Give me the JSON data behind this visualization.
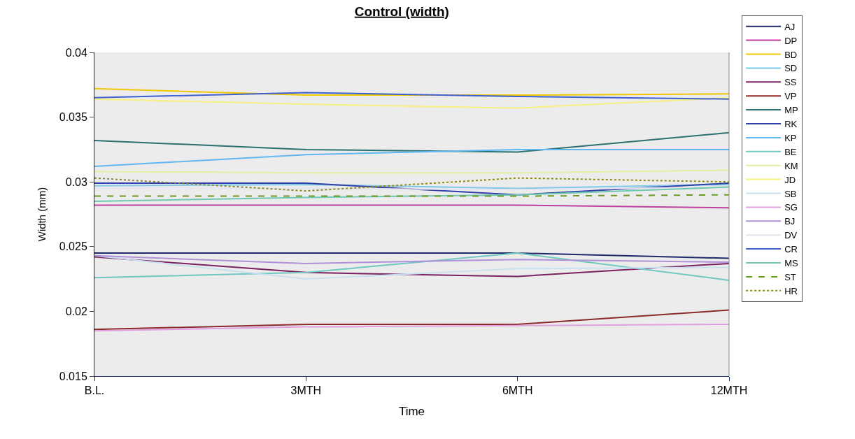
{
  "chart_data": {
    "type": "line",
    "title": "Control (width)",
    "xlabel": "Time",
    "ylabel": "Width (mm)",
    "categories": [
      "B.L.",
      "3MTH",
      "6MTH",
      "12MTH"
    ],
    "ylim": [
      0.015,
      0.04
    ],
    "yticks": [
      0.015,
      0.02,
      0.025,
      0.03,
      0.035,
      0.04
    ],
    "grid": false,
    "legend": "right",
    "marker": "none",
    "line_style": "solid",
    "series": [
      {
        "name": "AJ",
        "color": "#1f2a6b",
        "values": [
          0.0245,
          0.0245,
          0.0245,
          0.0241
        ]
      },
      {
        "name": "DP",
        "color": "#c040a0",
        "values": [
          0.0282,
          0.0282,
          0.0282,
          0.028
        ]
      },
      {
        "name": "BD",
        "color": "#f0c800",
        "values": [
          0.0372,
          0.0367,
          0.0367,
          0.0368
        ]
      },
      {
        "name": "SD",
        "color": "#80c8e8",
        "values": [
          0.0297,
          0.0298,
          0.0295,
          0.0298
        ]
      },
      {
        "name": "SS",
        "color": "#7a2060",
        "values": [
          0.0242,
          0.023,
          0.0227,
          0.0237
        ]
      },
      {
        "name": "VP",
        "color": "#8b2a2a",
        "values": [
          0.0186,
          0.019,
          0.019,
          0.0201
        ]
      },
      {
        "name": "MP",
        "color": "#2a7070",
        "values": [
          0.0332,
          0.0325,
          0.0323,
          0.0338
        ]
      },
      {
        "name": "RK",
        "color": "#3040a8",
        "values": [
          0.0299,
          0.0299,
          0.029,
          0.0299
        ]
      },
      {
        "name": "KP",
        "color": "#60b8f0",
        "values": [
          0.0312,
          0.0321,
          0.0325,
          0.0325
        ]
      },
      {
        "name": "BE",
        "color": "#70c8c0",
        "values": [
          0.0226,
          0.023,
          0.0245,
          0.0224
        ]
      },
      {
        "name": "KM",
        "color": "#e0f0a0",
        "values": [
          0.0308,
          0.0307,
          0.0307,
          0.0309
        ]
      },
      {
        "name": "JD",
        "color": "#f8f080",
        "values": [
          0.0364,
          0.036,
          0.0357,
          0.0365
        ]
      },
      {
        "name": "SB",
        "color": "#c8e0f0",
        "values": [
          0.0243,
          0.0225,
          0.0233,
          0.0234
        ]
      },
      {
        "name": "SG",
        "color": "#e0a0e0",
        "values": [
          0.0185,
          0.0188,
          0.0189,
          0.019
        ]
      },
      {
        "name": "BJ",
        "color": "#b090d8",
        "values": [
          0.0243,
          0.0237,
          0.024,
          0.0238
        ]
      },
      {
        "name": "DV",
        "color": "#e4e4f0",
        "values": [
          0.0295,
          0.0295,
          0.0294,
          0.0296
        ]
      },
      {
        "name": "CR",
        "color": "#4060d0",
        "values": [
          0.0365,
          0.0369,
          0.0366,
          0.0364
        ]
      },
      {
        "name": "MS",
        "color": "#70c8b0",
        "values": [
          0.0285,
          0.0288,
          0.029,
          0.0296
        ]
      },
      {
        "name": "ST",
        "color": "#6a9a20",
        "values": [
          0.0289,
          0.0289,
          0.0289,
          0.029
        ],
        "line_style": "dashed"
      },
      {
        "name": "HR",
        "color": "#8a8a20",
        "values": [
          0.0303,
          0.0293,
          0.0303,
          0.03
        ],
        "line_style": "dotted"
      }
    ]
  }
}
